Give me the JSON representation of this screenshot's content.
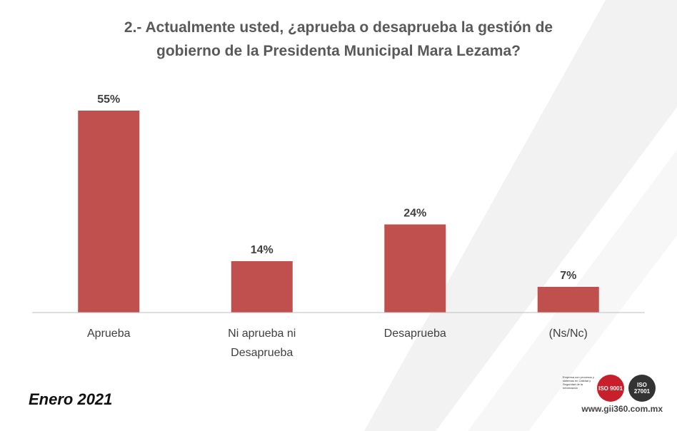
{
  "title_line1": "2.- Actualmente usted, ¿aprueba o desaprueba la gestión de",
  "title_line2": "gobierno de la Presidenta Municipal Mara Lezama?",
  "date_label": "Enero 2021",
  "logo": {
    "small_text": "Empresa con procesos y sistemas en Calidad y Seguridad de la Información",
    "badge1": "ISO 9001",
    "badge2": "ISO 27001",
    "url": "www.gii360.com.mx"
  },
  "colors": {
    "bar": "#c0504d",
    "axis": "#bfbfbf",
    "label": "#404040",
    "stripe": "#f2f2f2"
  },
  "chart_data": {
    "type": "bar",
    "title": "2.- Actualmente usted, ¿aprueba o desaprueba la gestión de gobierno de la Presidenta Municipal Mara Lezama?",
    "categories": [
      [
        "Aprueba"
      ],
      [
        "Ni aprueba ni",
        "Desaprueba"
      ],
      [
        "Desaprueba"
      ],
      [
        "(Ns/Nc)"
      ]
    ],
    "values": [
      55,
      14,
      24,
      7
    ],
    "value_labels": [
      "55%",
      "14%",
      "24%",
      "7%"
    ],
    "ylim": [
      0,
      55
    ],
    "xlabel": "",
    "ylabel": "",
    "grid": false
  }
}
